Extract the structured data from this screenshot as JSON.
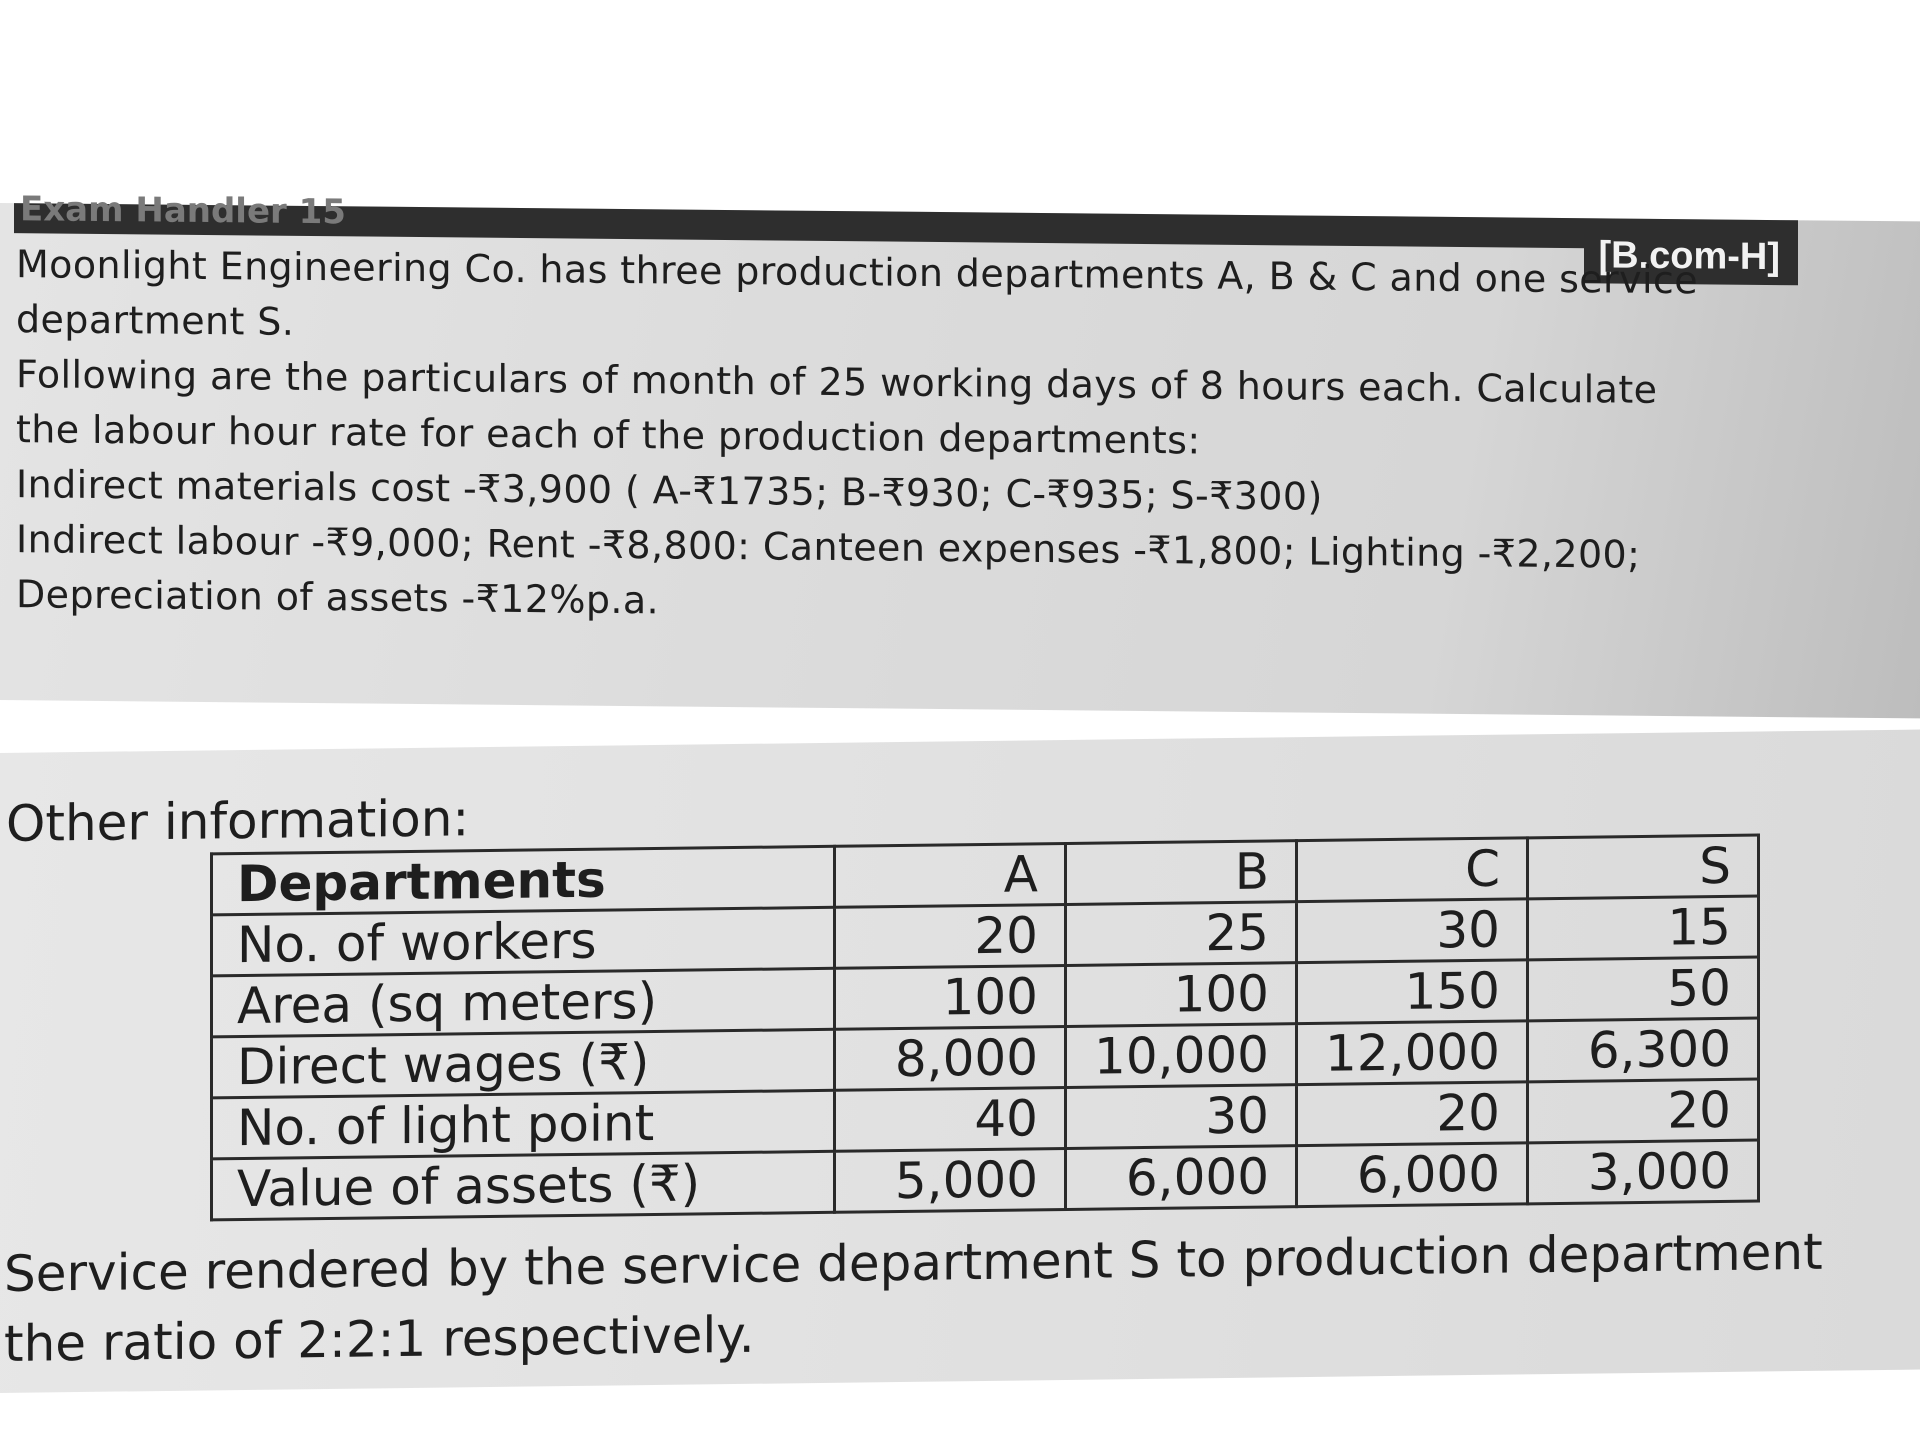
{
  "header": {
    "left_text": "Exam Handler 15",
    "course_tag": "[B.com-H]"
  },
  "problem": {
    "lines": [
      "Moonlight Engineering Co. has three production departments A, B & C and one service",
      "department S.",
      "Following are the particulars of month of 25 working days of 8 hours each. Calculate",
      "the labour hour rate for each of the production departments:",
      "Indirect materials cost -₹3,900 ( A-₹1735; B-₹930; C-₹935; S-₹300)",
      "Indirect labour -₹9,000; Rent -₹8,800: Canteen expenses -₹1,800; Lighting -₹2,200;",
      "Depreciation of assets -₹12%p.a."
    ]
  },
  "other_info": {
    "heading": "Other information:",
    "table": {
      "headers": [
        "Departments",
        "A",
        "B",
        "C",
        "S"
      ],
      "rows": [
        [
          "No. of workers",
          "20",
          "25",
          "30",
          "15"
        ],
        [
          "Area (sq meters)",
          "100",
          "100",
          "150",
          "50"
        ],
        [
          "Direct wages (₹)",
          "8,000",
          "10,000",
          "12,000",
          "6,300"
        ],
        [
          "No. of light point",
          "40",
          "30",
          "20",
          "20"
        ],
        [
          "Value of assets (₹)",
          "5,000",
          "6,000",
          "6,000",
          "3,000"
        ]
      ]
    },
    "footer_lines": [
      "Service rendered by the service department S to production department",
      "the ratio of 2:2:1 respectively."
    ]
  }
}
